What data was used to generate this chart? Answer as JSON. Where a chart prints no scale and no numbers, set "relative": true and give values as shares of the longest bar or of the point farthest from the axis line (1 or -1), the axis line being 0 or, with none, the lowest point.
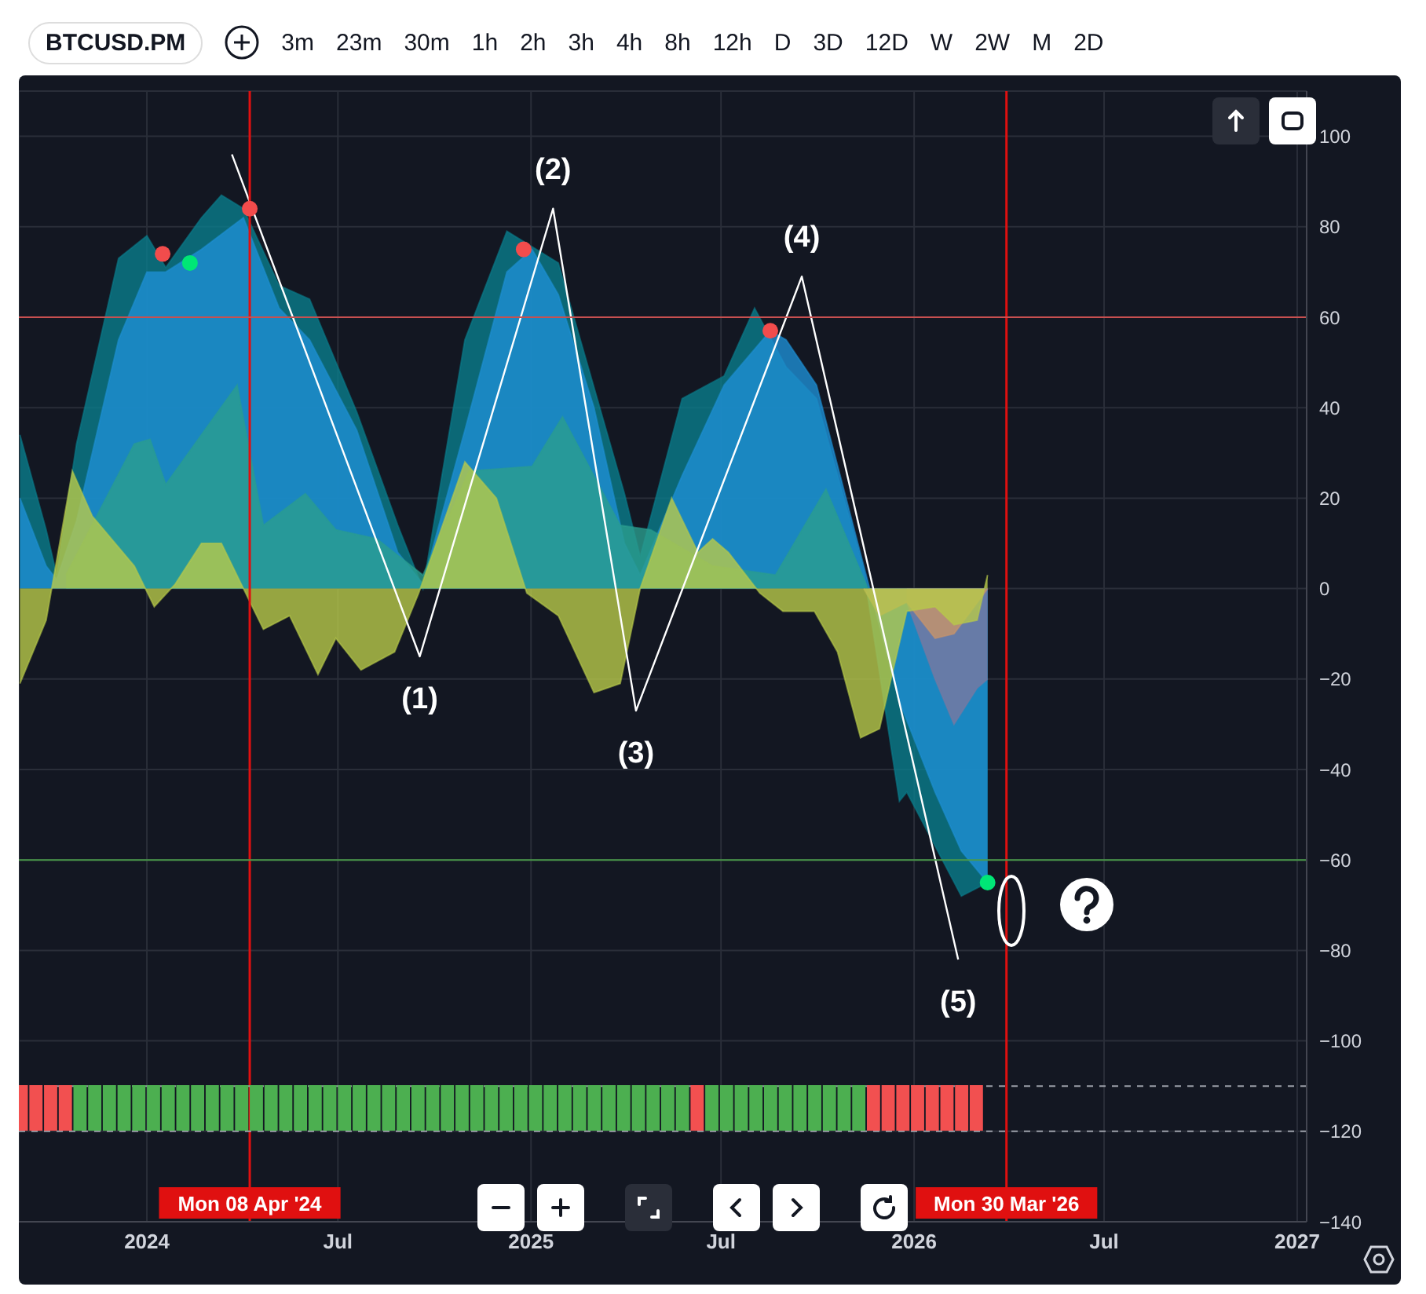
{
  "chart_data": [
    {
      "type": "area",
      "title": "BTCUSD.PM",
      "annotations": [
        {
          "text": "(1)",
          "x": "2024-09-17",
          "y": -15
        },
        {
          "text": "(2)",
          "x": "2025-01-22",
          "y": 84
        },
        {
          "text": "(3)",
          "x": "2025-04-11",
          "y": -27
        },
        {
          "text": "(4)",
          "x": "2025-09-16",
          "y": 69
        },
        {
          "text": "(5)",
          "x": "2026-02-12",
          "y": -82
        },
        "3m",
        "23m",
        "30m",
        "1h",
        "2h",
        "3h",
        "4h",
        "8h",
        "12h",
        "D",
        "3D",
        "12D",
        "W",
        "2W",
        "M",
        "2D"
      ],
      "xlim": [
        "2023-09-01",
        "2027-01-10"
      ],
      "xticks": [
        {
          "value": "2024-01-01",
          "label": "2024"
        },
        {
          "value": "2024-07-01",
          "label": "Jul"
        },
        {
          "value": "2025-01-01",
          "label": "2025"
        },
        {
          "value": "2025-07-01",
          "label": "Jul"
        },
        {
          "value": "2026-01-01",
          "label": "2026"
        },
        {
          "value": "2026-07-01",
          "label": "Jul"
        },
        {
          "value": "2027-01-01",
          "label": "2027"
        }
      ],
      "ylim": [
        -140,
        110
      ],
      "yticks": [
        -140,
        -120,
        -100,
        -80,
        -60,
        -40,
        -20,
        0,
        20,
        40,
        60,
        80,
        100
      ],
      "grid": true,
      "legend": false,
      "ref_lines": [
        {
          "axis": "x",
          "value": "2024-04-08",
          "label": "Mon 08 Apr '24",
          "color": "#e01010"
        },
        {
          "axis": "x",
          "value": "2026-03-30",
          "label": "Mon 30 Mar '26",
          "color": "#e01010"
        },
        {
          "axis": "y",
          "value": 60,
          "color": "#c85050"
        },
        {
          "axis": "y",
          "value": -60,
          "color": "#4a9a4a"
        },
        {
          "axis": "y",
          "value": -110,
          "color": "#9a9ea8",
          "line_style": "dashed"
        },
        {
          "axis": "y",
          "value": -120,
          "color": "#9a9ea8",
          "line_style": "dashed"
        }
      ],
      "series": [
        {
          "type": "area",
          "color": "#0a7d8c",
          "x": [
            "2023-09-02",
            "2023-09-27",
            "2023-10-07",
            "2023-10-26",
            "2023-12-05",
            "2024-01-01",
            "2024-01-19",
            "2024-02-22",
            "2024-03-12",
            "2024-04-02",
            "2024-05-06",
            "2024-06-04",
            "2024-07-19",
            "2024-08-27",
            "2024-09-20",
            "2024-10-30",
            "2024-12-09",
            "2025-01-27",
            "2025-03-31",
            "2025-04-15",
            "2025-05-25",
            "2025-07-04",
            "2025-08-02",
            "2025-09-01",
            "2025-09-30",
            "2025-11-14",
            "2025-12-18",
            "2025-12-25",
            "2026-02-15",
            "2026-03-12"
          ],
          "values": [
            34,
            13,
            3,
            32,
            73,
            78,
            71,
            82,
            87,
            84,
            67,
            64,
            39,
            14,
            0,
            55,
            79,
            72,
            21,
            7,
            42,
            47,
            62,
            49,
            42,
            4,
            -47,
            -45,
            -68,
            -65
          ]
        },
        {
          "type": "area",
          "color": "#1e8fd4",
          "x": [
            "2023-09-02",
            "2023-09-27",
            "2023-10-07",
            "2023-10-26",
            "2023-12-05",
            "2024-01-01",
            "2024-01-19",
            "2024-02-22",
            "2024-04-02",
            "2024-05-06",
            "2024-06-04",
            "2024-07-19",
            "2024-08-27",
            "2024-09-20",
            "2024-10-30",
            "2024-12-09",
            "2025-01-02",
            "2025-01-27",
            "2025-03-02",
            "2025-03-31",
            "2025-04-15",
            "2025-05-25",
            "2025-07-04",
            "2025-08-17",
            "2025-09-01",
            "2025-09-30",
            "2025-11-14",
            "2025-12-18",
            "2026-01-21",
            "2026-02-15",
            "2026-03-12"
          ],
          "values": [
            20,
            5,
            2,
            15,
            55,
            70,
            70,
            75,
            82,
            62,
            55,
            35,
            8,
            1,
            35,
            70,
            75,
            65,
            40,
            10,
            3,
            25,
            45,
            57,
            55,
            45,
            5,
            -25,
            -45,
            -58,
            -65
          ]
        },
        {
          "type": "area",
          "color": "#7a78a0",
          "x": [
            "2025-12-25",
            "2026-01-21",
            "2026-02-08",
            "2026-03-02",
            "2026-03-12"
          ],
          "values": [
            -3,
            -20,
            -30,
            -22,
            -20
          ]
        },
        {
          "type": "area",
          "color": "#c8956a",
          "x": [
            "2025-11-14",
            "2025-11-29",
            "2025-12-25",
            "2026-01-21",
            "2026-02-08",
            "2026-03-12"
          ],
          "values": [
            0,
            -6,
            -3,
            -11,
            -10,
            0
          ]
        },
        {
          "type": "area",
          "color": "#2a9d8f",
          "x": [
            "2023-10-16",
            "2023-12-20",
            "2024-01-04",
            "2024-01-19",
            "2024-03-27",
            "2024-04-21",
            "2024-05-31",
            "2024-06-29",
            "2024-08-07",
            "2024-09-20",
            "2024-11-03",
            "2025-01-02",
            "2025-01-31",
            "2025-03-27",
            "2025-04-25",
            "2025-06-23",
            "2025-08-22",
            "2025-10-09",
            "2025-11-18"
          ],
          "values": [
            3,
            32,
            33,
            23,
            45,
            14,
            21,
            13,
            11,
            3,
            26,
            27,
            38,
            14,
            13,
            5,
            3,
            22,
            0
          ]
        },
        {
          "type": "area",
          "color": "#b8c94a",
          "x": [
            "2023-09-02",
            "2023-09-27",
            "2023-10-22",
            "2023-11-10",
            "2023-12-20",
            "2024-01-08",
            "2024-01-28",
            "2024-02-22",
            "2024-03-12",
            "2024-04-02",
            "2024-04-21",
            "2024-05-16",
            "2024-06-12",
            "2024-06-29",
            "2024-07-23",
            "2024-08-24",
            "2024-09-16",
            "2024-10-30",
            "2024-11-29",
            "2024-12-28",
            "2025-01-27",
            "2025-03-02",
            "2025-03-27",
            "2025-04-15",
            "2025-05-15",
            "2025-06-09",
            "2025-06-23",
            "2025-07-08",
            "2025-08-07",
            "2025-08-29",
            "2025-09-28",
            "2025-10-20",
            "2025-11-11",
            "2025-11-29",
            "2025-12-25",
            "2026-01-21",
            "2026-02-08",
            "2026-03-02",
            "2026-03-12"
          ],
          "values": [
            -21,
            -7,
            26,
            16,
            5,
            -4,
            1,
            10,
            10,
            0,
            -9,
            -6,
            -19,
            -11,
            -18,
            -14,
            -1,
            28,
            20,
            -1,
            -6,
            -23,
            -21,
            0,
            20,
            8,
            11,
            8,
            -1,
            -5,
            -5,
            -14,
            -33,
            -31,
            -5,
            -4,
            -8,
            -7,
            3
          ]
        },
        {
          "type": "line",
          "color": "#ffffff",
          "x": [
            "2024-03-22",
            "2024-09-17",
            "2025-01-22",
            "2025-04-11",
            "2025-09-16",
            "2026-02-12"
          ],
          "values": [
            96,
            -15,
            84,
            -27,
            69,
            -82
          ]
        },
        {
          "type": "scatter",
          "colors": [
            "#f24c4c",
            "#00e676",
            "#f24c4c",
            "#f24c4c",
            "#f24c4c",
            "#00e676"
          ],
          "x": [
            "2024-01-16",
            "2024-02-11",
            "2024-04-08",
            "2024-12-25",
            "2025-08-17",
            "2026-03-12"
          ],
          "values": [
            74,
            72,
            84,
            75,
            57,
            -65
          ]
        }
      ]
    },
    {
      "type": "bar",
      "relative": true,
      "tick_labels": false,
      "xlim": [
        "2023-09-01",
        "2027-01-10"
      ],
      "x": [
        "2023-09-04",
        "2023-09-18",
        "2023-10-02",
        "2023-10-16",
        "2023-10-30",
        "2023-11-13",
        "2023-11-27",
        "2023-12-11",
        "2023-12-25",
        "2024-01-08",
        "2024-01-22",
        "2024-02-05",
        "2024-02-19",
        "2024-03-04",
        "2024-03-18",
        "2024-04-01",
        "2024-04-15",
        "2024-04-29",
        "2024-05-13",
        "2024-05-27",
        "2024-06-10",
        "2024-06-24",
        "2024-07-08",
        "2024-07-22",
        "2024-08-05",
        "2024-08-19",
        "2024-09-02",
        "2024-09-16",
        "2024-09-30",
        "2024-10-14",
        "2024-10-28",
        "2024-11-11",
        "2024-11-25",
        "2024-12-09",
        "2024-12-23",
        "2025-01-06",
        "2025-01-20",
        "2025-02-03",
        "2025-02-17",
        "2025-03-03",
        "2025-03-17",
        "2025-03-31",
        "2025-04-14",
        "2025-04-28",
        "2025-05-12",
        "2025-05-26",
        "2025-06-09",
        "2025-06-23",
        "2025-07-07",
        "2025-07-21",
        "2025-08-04",
        "2025-08-18",
        "2025-09-01",
        "2025-09-15",
        "2025-09-29",
        "2025-10-13",
        "2025-10-27",
        "2025-11-10",
        "2025-11-24",
        "2025-12-08",
        "2025-12-22",
        "2026-01-05",
        "2026-01-19",
        "2026-02-02",
        "2026-02-16",
        "2026-03-02"
      ],
      "values": [
        1,
        1,
        1,
        1,
        1,
        1,
        1,
        1,
        1,
        1,
        1,
        1,
        1,
        1,
        1,
        1,
        1,
        1,
        1,
        1,
        1,
        1,
        1,
        1,
        1,
        1,
        1,
        1,
        1,
        1,
        1,
        1,
        1,
        1,
        1,
        1,
        1,
        1,
        1,
        1,
        1,
        1,
        1,
        1,
        1,
        1,
        1,
        1,
        1,
        1,
        1,
        1,
        1,
        1,
        1,
        1,
        1,
        1,
        1,
        1,
        1,
        1,
        1,
        1,
        1,
        1
      ],
      "colors": [
        "#f25050",
        "#f25050",
        "#f25050",
        "#f25050",
        "#4caf50",
        "#4caf50",
        "#4caf50",
        "#4caf50",
        "#4caf50",
        "#4caf50",
        "#4caf50",
        "#4caf50",
        "#4caf50",
        "#4caf50",
        "#4caf50",
        "#4caf50",
        "#4caf50",
        "#4caf50",
        "#4caf50",
        "#4caf50",
        "#4caf50",
        "#4caf50",
        "#4caf50",
        "#4caf50",
        "#4caf50",
        "#4caf50",
        "#4caf50",
        "#4caf50",
        "#4caf50",
        "#4caf50",
        "#4caf50",
        "#4caf50",
        "#4caf50",
        "#4caf50",
        "#4caf50",
        "#4caf50",
        "#4caf50",
        "#4caf50",
        "#4caf50",
        "#4caf50",
        "#4caf50",
        "#4caf50",
        "#4caf50",
        "#4caf50",
        "#4caf50",
        "#4caf50",
        "#f25050",
        "#4caf50",
        "#4caf50",
        "#4caf50",
        "#4caf50",
        "#4caf50",
        "#4caf50",
        "#4caf50",
        "#4caf50",
        "#4caf50",
        "#4caf50",
        "#4caf50",
        "#f25050",
        "#f25050",
        "#f25050",
        "#f25050",
        "#f25050",
        "#f25050",
        "#f25050",
        "#f25050"
      ]
    }
  ]
}
